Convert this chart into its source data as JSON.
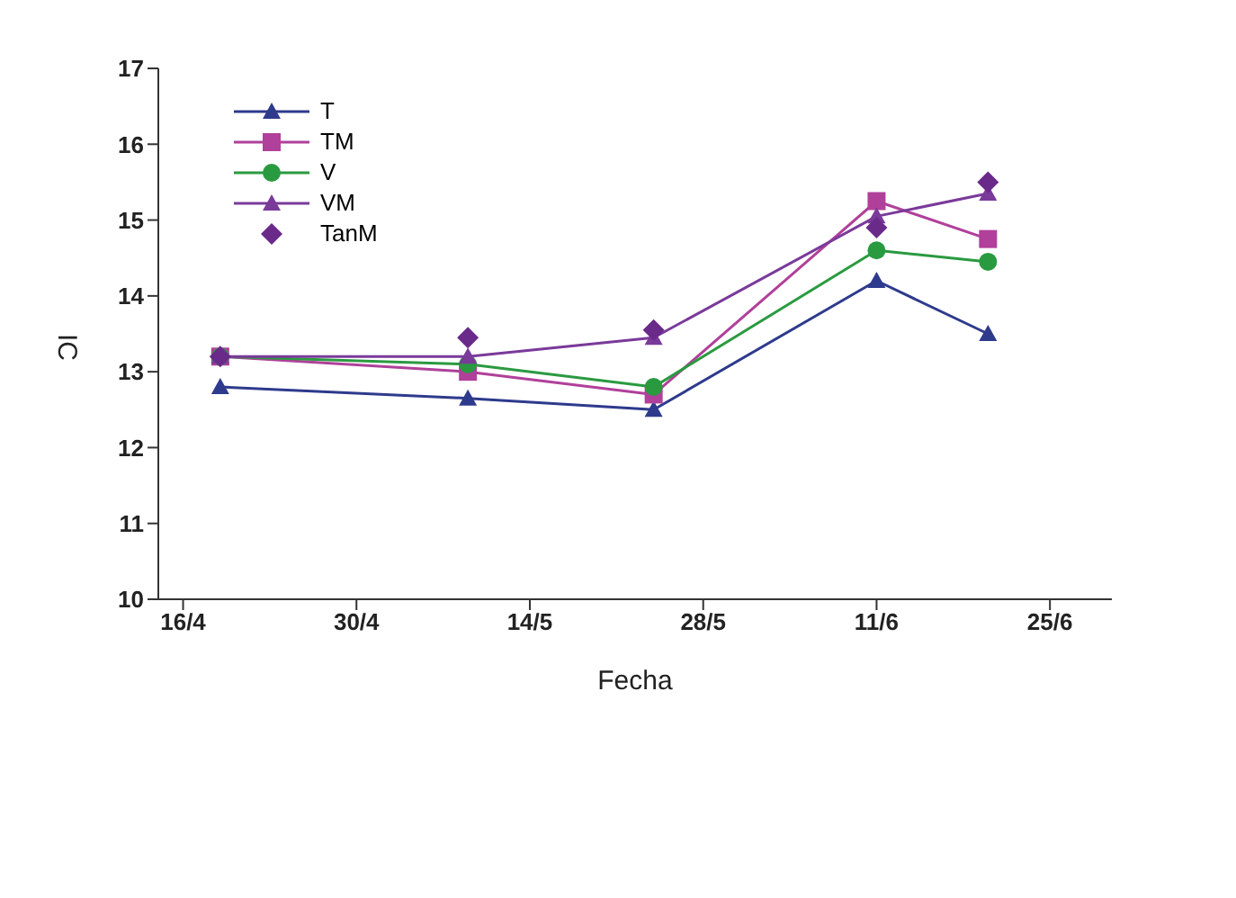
{
  "chart_data": {
    "type": "line",
    "xlabel": "Fecha",
    "ylabel": "IC",
    "x": [
      "--04-19",
      "--05-09",
      "--05-24",
      "--06-11",
      "--06-20"
    ],
    "xlim": [
      "--04-14",
      "--06-30"
    ],
    "xticks": [
      {
        "value": "--04-16",
        "label": "16/4"
      },
      {
        "value": "--04-30",
        "label": "30/4"
      },
      {
        "value": "--05-14",
        "label": "14/5"
      },
      {
        "value": "--05-28",
        "label": "28/5"
      },
      {
        "value": "--06-11",
        "label": "11/6"
      },
      {
        "value": "--06-25",
        "label": "25/6"
      }
    ],
    "ylim": [
      10,
      17
    ],
    "yticks": [
      10,
      11,
      12,
      13,
      14,
      15,
      16,
      17
    ],
    "legend": "top left",
    "line_style": "solid",
    "series": [
      {
        "name": "T",
        "color": "#2e3a8c",
        "marker": "triangle",
        "values": [
          12.8,
          12.65,
          12.5,
          14.2,
          13.5
        ]
      },
      {
        "name": "TM",
        "color": "#b0409a",
        "marker": "square",
        "values": [
          13.2,
          13.0,
          12.7,
          15.25,
          14.75
        ]
      },
      {
        "name": "V",
        "color": "#2a9a40",
        "marker": "circle",
        "values": [
          13.2,
          13.1,
          12.8,
          14.6,
          14.45
        ]
      },
      {
        "name": "VM",
        "color": "#7a3a9a",
        "marker": "triangle",
        "values": [
          13.2,
          13.2,
          13.45,
          15.05,
          15.35
        ]
      },
      {
        "name": "TanM",
        "type": "scatter",
        "color": "#6a2a8a",
        "marker": "diamond",
        "values": [
          13.2,
          13.45,
          13.55,
          14.9,
          15.5
        ]
      }
    ]
  }
}
